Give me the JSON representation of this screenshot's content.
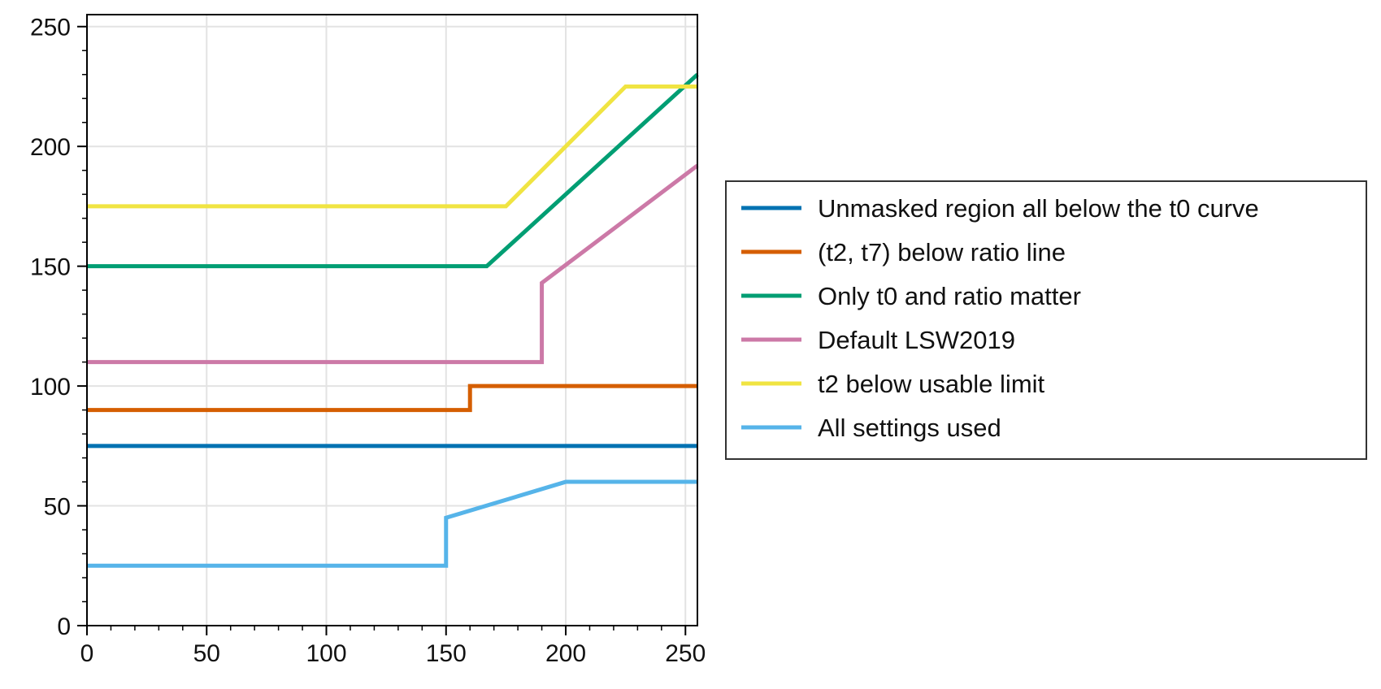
{
  "chart_data": {
    "type": "line",
    "title": "",
    "xlabel": "",
    "ylabel": "",
    "xlim": [
      0,
      255
    ],
    "ylim": [
      0,
      255
    ],
    "xticks": [
      0,
      50,
      100,
      150,
      200,
      250
    ],
    "yticks": [
      0,
      50,
      100,
      150,
      200,
      250
    ],
    "x_minor_step": 10,
    "y_minor_step": 10,
    "grid": true,
    "legend_position": "right",
    "series": [
      {
        "name": "Unmasked region all below the t0 curve",
        "color": "#0072b2",
        "points": [
          [
            0,
            75
          ],
          [
            255,
            75
          ]
        ]
      },
      {
        "name": "(t2, t7) below ratio line",
        "color": "#d55e00",
        "points": [
          [
            0,
            90
          ],
          [
            160,
            90
          ],
          [
            160,
            100
          ],
          [
            255,
            100
          ]
        ]
      },
      {
        "name": "Only t0 and ratio matter",
        "color": "#009e73",
        "points": [
          [
            0,
            150
          ],
          [
            167,
            150
          ],
          [
            255,
            230
          ]
        ]
      },
      {
        "name": "Default LSW2019",
        "color": "#cc79a7",
        "points": [
          [
            0,
            110
          ],
          [
            190,
            110
          ],
          [
            190,
            143
          ],
          [
            255,
            192
          ]
        ]
      },
      {
        "name": "t2 below usable limit",
        "color": "#f0e442",
        "points": [
          [
            0,
            175
          ],
          [
            175,
            175
          ],
          [
            225,
            225
          ],
          [
            255,
            225
          ]
        ]
      },
      {
        "name": "All settings used",
        "color": "#56b4e9",
        "points": [
          [
            0,
            25
          ],
          [
            150,
            25
          ],
          [
            150,
            45
          ],
          [
            200,
            60
          ],
          [
            255,
            60
          ]
        ]
      }
    ]
  }
}
